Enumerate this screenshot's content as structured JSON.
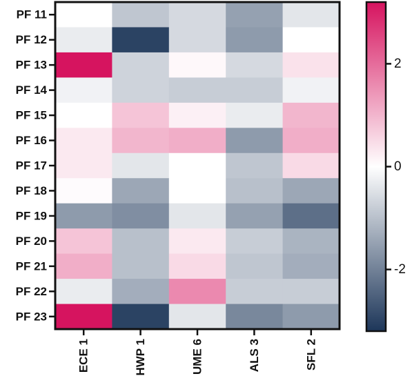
{
  "chart_data": {
    "type": "heatmap",
    "title": "",
    "xlabel": "",
    "ylabel": "",
    "rows": [
      "PF 11",
      "PF 12",
      "PF 13",
      "PF 14",
      "PF 15",
      "PF 16",
      "PF 17",
      "PF 18",
      "PF 19",
      "PF 20",
      "PF 21",
      "PF 22",
      "PF 23"
    ],
    "columns": [
      "ECE 1",
      "HWP 1",
      "UME 6",
      "ALS 3",
      "SFL 2"
    ],
    "values": [
      [
        0.0,
        -0.9,
        -0.6,
        -1.5,
        -0.4
      ],
      [
        -0.3,
        -3.0,
        -0.6,
        -1.6,
        0.0
      ],
      [
        3.2,
        -0.7,
        0.1,
        -0.6,
        0.4
      ],
      [
        -0.2,
        -0.7,
        -0.8,
        -0.8,
        -0.2
      ],
      [
        0.0,
        0.8,
        0.2,
        -0.3,
        1.0
      ],
      [
        0.3,
        1.0,
        1.1,
        -1.6,
        1.1
      ],
      [
        0.3,
        -0.4,
        0.0,
        -0.9,
        0.5
      ],
      [
        0.05,
        -1.4,
        0.0,
        -1.0,
        -1.4
      ],
      [
        -1.6,
        -1.8,
        -0.4,
        -1.5,
        -2.3
      ],
      [
        0.8,
        -1.0,
        0.3,
        -0.8,
        -1.2
      ],
      [
        1.1,
        -1.0,
        0.5,
        -0.9,
        -1.3
      ],
      [
        -0.3,
        -1.3,
        1.6,
        -0.8,
        -0.8
      ],
      [
        3.2,
        -3.0,
        -0.4,
        -1.9,
        -1.6
      ]
    ],
    "colorbar": {
      "min": -3.2,
      "max": 3.2,
      "ticks": [
        2,
        0,
        -2
      ],
      "tick_labels": [
        "2",
        "0",
        "-2"
      ],
      "colors": {
        "low": "#1d3659",
        "mid": "#ffffff",
        "high": "#d6145f"
      }
    },
    "grid": false,
    "legend": "right"
  }
}
